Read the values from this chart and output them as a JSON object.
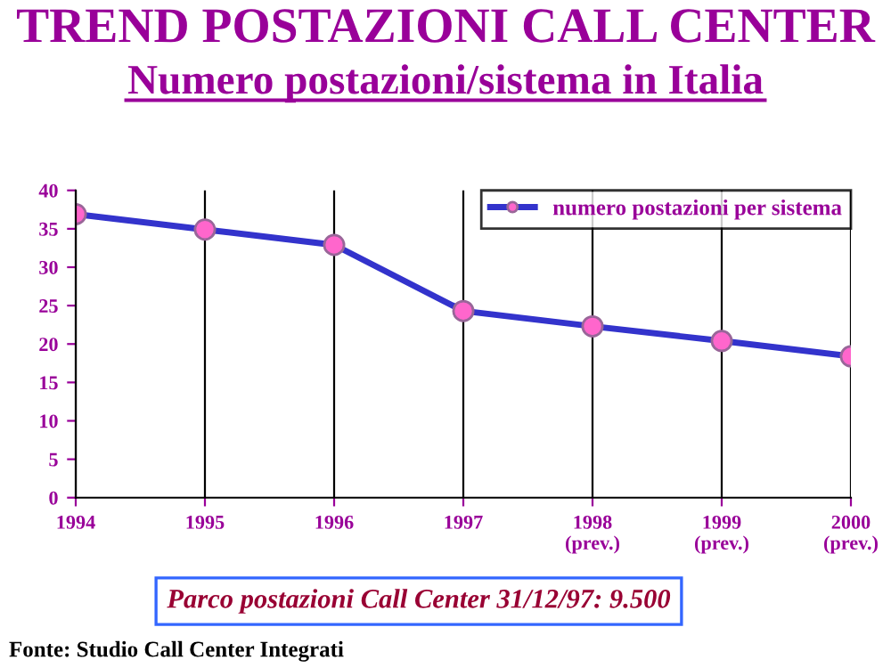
{
  "chart_data": {
    "type": "line",
    "title": "TREND POSTAZIONI CALL CENTER",
    "subtitle": "Numero postazioni/sistema in Italia",
    "categories": [
      "1994",
      "1995",
      "1996",
      "1997",
      "1998\n(prev.)",
      "1999\n(prev.)",
      "2000\n(prev.)"
    ],
    "series": [
      {
        "name": "numero postazioni per sistema",
        "color": "#3333cc",
        "values": [
          36.9,
          34.9,
          32.9,
          24.3,
          22.3,
          20.4,
          18.4
        ]
      }
    ],
    "ylim": [
      0,
      40
    ],
    "yticks": [
      0,
      5,
      10,
      15,
      20,
      25,
      30,
      35,
      40
    ],
    "grid": "x",
    "legend": "top right",
    "marker": "circle",
    "line_style": "solid",
    "annotations": [
      "Parco postazioni Call Center 31/12/97: 9.500",
      "Fonte: Studio Call Center Integrati"
    ]
  }
}
